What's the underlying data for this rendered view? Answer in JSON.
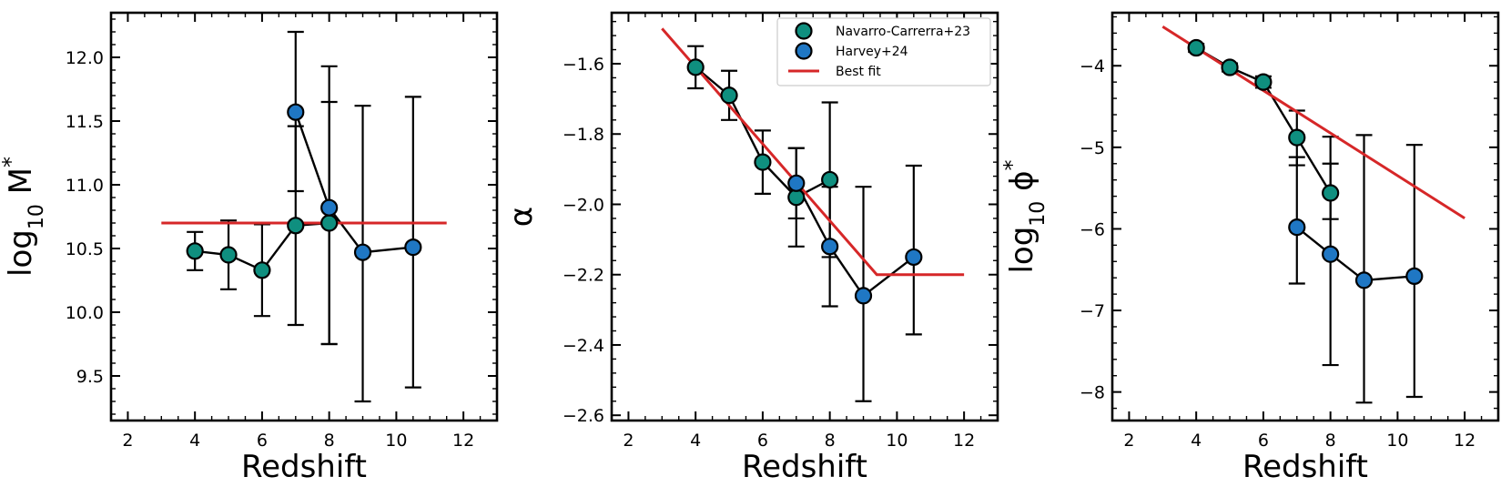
{
  "chart_data": [
    {
      "type": "scatter",
      "name": "mstar",
      "xlabel": "Redshift",
      "ylabel": {
        "prefix": "log",
        "sub": "10",
        "main": " M",
        "sup": "*"
      },
      "xlim": [
        1.5,
        13
      ],
      "ylim": [
        9.15,
        12.35
      ],
      "xticks": [
        2,
        4,
        6,
        8,
        10,
        12
      ],
      "yticks": [
        9.5,
        10.0,
        10.5,
        11.0,
        11.5,
        12.0
      ],
      "ytick_labels": [
        "9.5",
        "10.0",
        "10.5",
        "11.0",
        "11.5",
        "12.0"
      ],
      "xminor_step": 0.5,
      "yminor_step": 0.1,
      "series": [
        {
          "name": "Navarro-Carrerra+23",
          "color": "#0f8f7f",
          "points": [
            {
              "x": 4,
              "y": 10.48,
              "lo": 10.33,
              "hi": 10.63
            },
            {
              "x": 5,
              "y": 10.45,
              "lo": 10.18,
              "hi": 10.72
            },
            {
              "x": 6,
              "y": 10.33,
              "lo": 9.97,
              "hi": 10.69
            },
            {
              "x": 7,
              "y": 10.68,
              "lo": 9.9,
              "hi": 11.46
            },
            {
              "x": 8,
              "y": 10.7,
              "lo": 9.75,
              "hi": 11.65
            }
          ]
        },
        {
          "name": "Harvey+24",
          "color": "#1f77c4",
          "points": [
            {
              "x": 7,
              "y": 11.57,
              "lo": 10.95,
              "hi": 12.2
            },
            {
              "x": 8,
              "y": 10.82,
              "lo": 9.75,
              "hi": 11.93
            },
            {
              "x": 9,
              "y": 10.47,
              "lo": 9.3,
              "hi": 11.62
            },
            {
              "x": 10.5,
              "y": 10.51,
              "lo": 9.41,
              "hi": 11.69
            }
          ]
        }
      ],
      "best_fit": {
        "name": "Best fit",
        "color": "#d62728",
        "x": [
          3,
          11.5
        ],
        "y": [
          10.7,
          10.7
        ]
      }
    },
    {
      "type": "scatter",
      "name": "alpha",
      "xlabel": "Redshift",
      "ylabel": {
        "prefix": "",
        "sub": "",
        "main": "α",
        "sup": ""
      },
      "xlim": [
        1.5,
        13
      ],
      "ylim": [
        -2.615,
        -1.455
      ],
      "xticks": [
        2,
        4,
        6,
        8,
        10,
        12
      ],
      "yticks": [
        -2.6,
        -2.4,
        -2.2,
        -2.0,
        -1.8,
        -1.6
      ],
      "ytick_labels": [
        "−2.6",
        "−2.4",
        "−2.2",
        "−2.0",
        "−1.8",
        "−1.6"
      ],
      "xminor_step": 0.5,
      "yminor_step": 0.04,
      "series": [
        {
          "name": "Navarro-Carrerra+23",
          "color": "#0f8f7f",
          "points": [
            {
              "x": 4,
              "y": -1.61,
              "lo": -1.67,
              "hi": -1.55
            },
            {
              "x": 5,
              "y": -1.69,
              "lo": -1.76,
              "hi": -1.62
            },
            {
              "x": 6,
              "y": -1.88,
              "lo": -1.97,
              "hi": -1.79
            },
            {
              "x": 7,
              "y": -1.98,
              "lo": -2.12,
              "hi": -1.84
            },
            {
              "x": 8,
              "y": -1.93,
              "lo": -2.15,
              "hi": -1.71
            }
          ]
        },
        {
          "name": "Harvey+24",
          "color": "#1f77c4",
          "points": [
            {
              "x": 7,
              "y": -1.94,
              "lo": -2.04,
              "hi": -1.84
            },
            {
              "x": 8,
              "y": -2.12,
              "lo": -2.29,
              "hi": -1.95
            },
            {
              "x": 9,
              "y": -2.26,
              "lo": -2.56,
              "hi": -1.95
            },
            {
              "x": 10.5,
              "y": -2.15,
              "lo": -2.37,
              "hi": -1.89
            }
          ]
        }
      ],
      "best_fit": {
        "name": "Best fit",
        "color": "#d62728",
        "x": [
          3,
          9.4,
          12
        ],
        "y": [
          -1.5,
          -2.2,
          -2.2
        ]
      },
      "legend": {
        "position": "top-right",
        "entries": [
          "Navarro-Carrerra+23",
          "Harvey+24",
          "Best fit"
        ]
      }
    },
    {
      "type": "scatter",
      "name": "phistar",
      "xlabel": "Redshift",
      "ylabel": {
        "prefix": "log",
        "sub": "10",
        "main": " ϕ",
        "sup": "*"
      },
      "xlim": [
        1.5,
        13
      ],
      "ylim": [
        -8.35,
        -3.35
      ],
      "xticks": [
        2,
        4,
        6,
        8,
        10,
        12
      ],
      "yticks": [
        -8,
        -7,
        -6,
        -5,
        -4
      ],
      "ytick_labels": [
        "−8",
        "−7",
        "−6",
        "−5",
        "−4"
      ],
      "xminor_step": 0.5,
      "yminor_step": 0.2,
      "series": [
        {
          "name": "Navarro-Carrerra+23",
          "color": "#0f8f7f",
          "points": [
            {
              "x": 4,
              "y": -3.78,
              "lo": -3.83,
              "hi": -3.73
            },
            {
              "x": 5,
              "y": -4.02,
              "lo": -4.07,
              "hi": -3.97
            },
            {
              "x": 6,
              "y": -4.2,
              "lo": -4.27,
              "hi": -4.13
            },
            {
              "x": 7,
              "y": -4.88,
              "lo": -5.22,
              "hi": -4.55
            },
            {
              "x": 8,
              "y": -5.56,
              "lo": -5.88,
              "hi": -4.87
            }
          ]
        },
        {
          "name": "Harvey+24",
          "color": "#1f77c4",
          "points": [
            {
              "x": 7,
              "y": -5.98,
              "lo": -6.67,
              "hi": -5.12
            },
            {
              "x": 8,
              "y": -6.31,
              "lo": -7.67,
              "hi": -5.2
            },
            {
              "x": 9,
              "y": -6.63,
              "lo": -8.13,
              "hi": -4.85
            },
            {
              "x": 10.5,
              "y": -6.58,
              "lo": -8.06,
              "hi": -4.97
            }
          ]
        }
      ],
      "best_fit": {
        "name": "Best fit",
        "color": "#d62728",
        "x": [
          3,
          12
        ],
        "y": [
          -3.52,
          -5.87
        ]
      }
    }
  ]
}
